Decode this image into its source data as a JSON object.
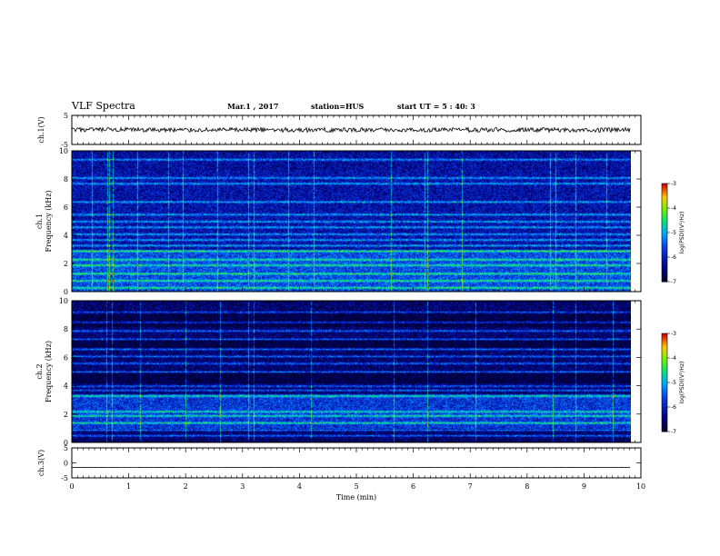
{
  "header": {
    "title": "VLF Spectra",
    "date": "Mar.1  , 2017",
    "station": "station=HUS",
    "start": "start  UT =   5 : 40: 3"
  },
  "colors": {
    "background": "#ffffff",
    "axis": "#000000"
  },
  "chart_data": [
    {
      "type": "line",
      "panel": "ch1-waveform",
      "ylabel": "ch.1(V)",
      "ylim": [
        -5,
        5
      ],
      "yticks": [
        "5",
        "-5"
      ],
      "x_range": [
        0,
        9.82
      ],
      "approx_level": 0.0
    },
    {
      "type": "heatmap",
      "panel": "ch1-spectrogram",
      "ylabel": [
        "ch.1",
        "Frequency (kHz)"
      ],
      "ylim": [
        0,
        10
      ],
      "yticks": [
        "0",
        "2",
        "4",
        "6",
        "8",
        "10"
      ],
      "x_range": [
        0,
        9.82
      ],
      "colorbar": {
        "label": "log(PSD)(V²/Hz)",
        "ticks": [
          "-3",
          "-4",
          "-5",
          "-6",
          "-7"
        ],
        "range": [
          -7,
          -3
        ]
      },
      "band_freqs_khz": [
        0.3,
        0.8,
        1.3,
        1.9,
        2.3,
        2.9,
        3.3,
        3.7,
        4.1,
        4.6,
        5.0,
        5.5,
        6.4,
        7.7,
        8.1,
        9.4
      ],
      "impulse_times_min": [
        0.35,
        0.62,
        0.66,
        0.72,
        1.15,
        1.7,
        1.95,
        2.55,
        3.1,
        3.2,
        3.8,
        4.25,
        5.6,
        6.2,
        6.25,
        6.85,
        8.4,
        8.5,
        8.85,
        9.4
      ]
    },
    {
      "type": "heatmap",
      "panel": "ch2-spectrogram",
      "ylabel": [
        "ch.2",
        "Frequency (kHz)"
      ],
      "ylim": [
        0,
        10
      ],
      "yticks": [
        "0",
        "2",
        "4",
        "6",
        "8",
        "10"
      ],
      "x_range": [
        0,
        9.82
      ],
      "colorbar": {
        "label": "log(PSD)(V²/Hz)",
        "ticks": [
          "-3",
          "-4",
          "-5",
          "-6",
          "-7"
        ],
        "range": [
          -7,
          -3
        ]
      },
      "band_freqs_khz": [
        0.5,
        0.9,
        1.4,
        1.9,
        2.2,
        3.3,
        3.7,
        4.0,
        5.0,
        5.6,
        6.1,
        6.6,
        7.3,
        7.9,
        8.5,
        9.2
      ],
      "impulse_times_min": [
        0.6,
        0.7,
        1.2,
        2.0,
        2.6,
        3.1,
        3.2,
        4.2,
        5.65,
        6.25,
        7.1,
        8.45,
        8.85,
        9.5
      ]
    },
    {
      "type": "line",
      "panel": "ch3-waveform",
      "ylabel": "ch.3(V)",
      "xlabel": "Time  (min)",
      "ylim": [
        -5,
        5
      ],
      "yticks": [
        "5",
        "0",
        "-5"
      ],
      "xlim": [
        0,
        10
      ],
      "xticks": [
        "0",
        "1",
        "2",
        "3",
        "4",
        "5",
        "6",
        "7",
        "8",
        "9",
        "10"
      ],
      "x_range": [
        0,
        9.82
      ],
      "approx_level": -1.5
    }
  ]
}
